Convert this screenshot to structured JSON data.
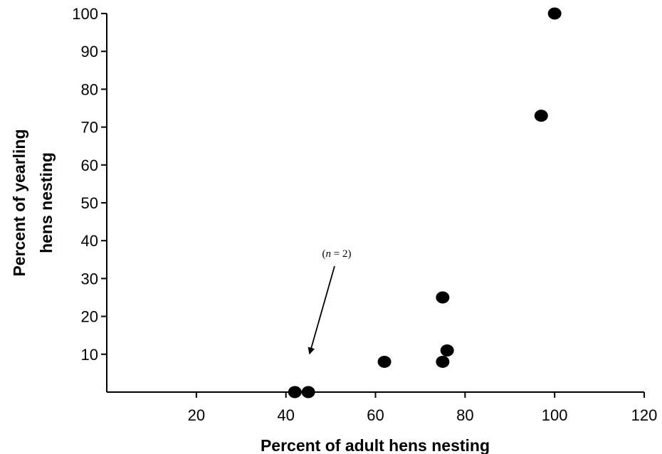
{
  "chart_data": {
    "type": "scatter",
    "title": "",
    "xlabel": "Percent of adult hens nesting",
    "ylabel_lines": [
      "Percent of yearling",
      "hens nesting"
    ],
    "xlim": [
      0,
      120
    ],
    "ylim": [
      0,
      100
    ],
    "x_ticks": [
      20,
      40,
      60,
      80,
      100,
      120
    ],
    "y_ticks": [
      10,
      20,
      30,
      40,
      50,
      60,
      70,
      80,
      90,
      100
    ],
    "grid": false,
    "legend": "none",
    "marker_color": "#000000",
    "points": [
      {
        "x": 42,
        "y": 0
      },
      {
        "x": 45,
        "y": 0
      },
      {
        "x": 62,
        "y": 8
      },
      {
        "x": 75,
        "y": 8
      },
      {
        "x": 76,
        "y": 11
      },
      {
        "x": 75,
        "y": 25
      },
      {
        "x": 97,
        "y": 73
      },
      {
        "x": 100,
        "y": 100
      }
    ],
    "annotation": {
      "open": "(",
      "n": "n",
      "rest": " = 2)",
      "target": {
        "x": 45,
        "y": 11
      }
    }
  }
}
